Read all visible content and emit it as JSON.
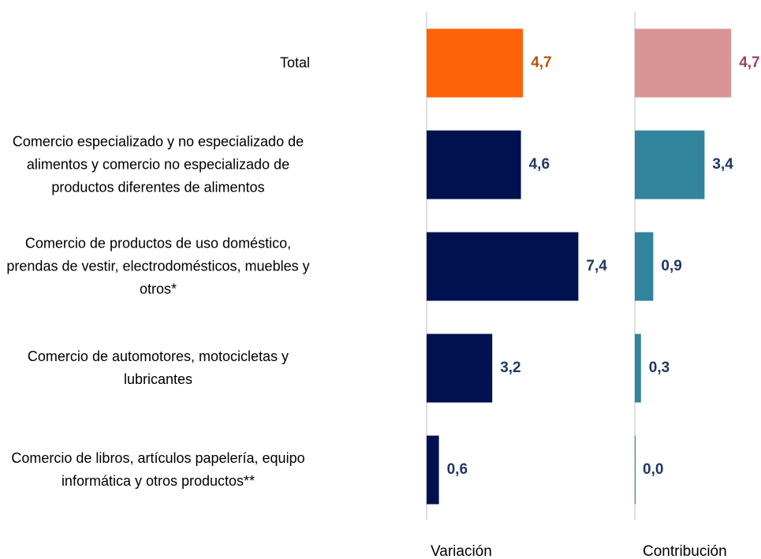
{
  "chart_data": {
    "type": "bar",
    "categories": [
      "Total",
      "Comercio especializado y no especializado de alimentos y comercio no especializado de productos diferentes de alimentos",
      "Comercio de productos de uso doméstico, prendas de vestir, electrodomésticos, muebles y otros*",
      "Comercio de automotores, motocicletas y lubricantes",
      "Comercio de libros, artículos papelería, equipo informática y otros productos**"
    ],
    "series": [
      {
        "name": "Variación",
        "colors": [
          "#ff6309",
          "#001150",
          "#001150",
          "#001150",
          "#001150"
        ],
        "values": [
          4.7,
          4.6,
          7.4,
          3.2,
          0.6
        ],
        "value_labels": [
          "4,7",
          "4,6",
          "7,4",
          "3,2",
          "0,6"
        ]
      },
      {
        "name": "Contribución",
        "colors": [
          "#d99594",
          "#31849b",
          "#31849b",
          "#31849b",
          "#31849b"
        ],
        "values": [
          4.7,
          3.4,
          0.9,
          0.3,
          0.0
        ],
        "value_labels": [
          "4,7",
          "3,4",
          "0,9",
          "0,3",
          "0,0"
        ]
      }
    ],
    "xlim": [
      0,
      9
    ]
  }
}
